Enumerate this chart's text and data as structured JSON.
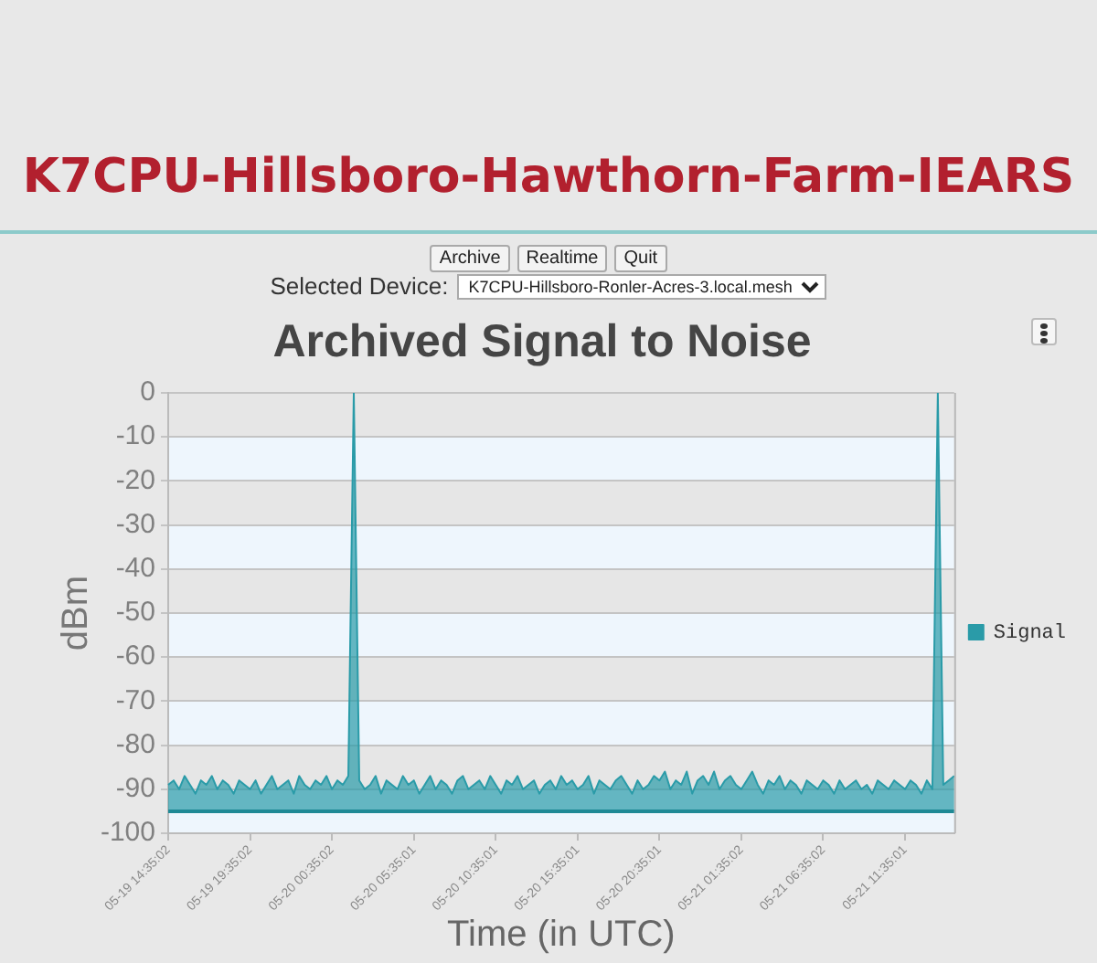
{
  "chart_data": {
    "type": "line",
    "title": "Archived Signal to Noise",
    "xlabel": "Time (in UTC)",
    "ylabel": "dBm",
    "categories": [
      "05-19 14:35:02",
      null,
      null,
      null,
      null,
      null,
      null,
      null,
      null,
      null,
      null,
      null,
      null,
      null,
      null,
      "05-19 19:35:02",
      null,
      null,
      null,
      null,
      null,
      null,
      null,
      null,
      null,
      null,
      null,
      null,
      null,
      null,
      "05-20 00:35:02",
      null,
      null,
      null,
      null,
      null,
      null,
      null,
      null,
      null,
      null,
      null,
      null,
      null,
      null,
      "05-20 05:35:01",
      null,
      null,
      null,
      null,
      null,
      null,
      null,
      null,
      null,
      null,
      null,
      null,
      null,
      null,
      "05-20 10:35:01",
      null,
      null,
      null,
      null,
      null,
      null,
      null,
      null,
      null,
      null,
      null,
      null,
      null,
      null,
      "05-20 15:35:01",
      null,
      null,
      null,
      null,
      null,
      null,
      null,
      null,
      null,
      null,
      null,
      null,
      null,
      null,
      "05-20 20:35:01",
      null,
      null,
      null,
      null,
      null,
      null,
      null,
      null,
      null,
      null,
      null,
      null,
      null,
      null,
      "05-21 01:35:02",
      null,
      null,
      null,
      null,
      null,
      null,
      null,
      null,
      null,
      null,
      null,
      null,
      null,
      null,
      "05-21 06:35:02",
      null,
      null,
      null,
      null,
      null,
      null,
      null,
      null,
      null,
      null,
      null,
      null,
      null,
      null,
      "05-21 11:35:01",
      null,
      null,
      null,
      null,
      null,
      null,
      null,
      null,
      null
    ],
    "series": [
      {
        "name": "Signal",
        "color": "#2a9ba8",
        "values": [
          -89,
          -88,
          -90,
          -87,
          -89,
          -91,
          -88,
          -89,
          -87,
          -90,
          -88,
          -89,
          -91,
          -88,
          -89,
          -90,
          -88,
          -91,
          -89,
          -87,
          -90,
          -89,
          -88,
          -91,
          -87,
          -89,
          -90,
          -88,
          -89,
          -87,
          -90,
          -88,
          -89,
          -87,
          0,
          -88,
          -90,
          -89,
          -87,
          -91,
          -88,
          -89,
          -90,
          -87,
          -89,
          -88,
          -91,
          -89,
          -87,
          -90,
          -88,
          -89,
          -91,
          -88,
          -87,
          -90,
          -89,
          -88,
          -90,
          -87,
          -89,
          -91,
          -88,
          -89,
          -87,
          -90,
          -89,
          -88,
          -91,
          -89,
          -88,
          -90,
          -87,
          -89,
          -88,
          -90,
          -89,
          -87,
          -91,
          -88,
          -89,
          -90,
          -88,
          -87,
          -89,
          -91,
          -88,
          -90,
          -89,
          -87,
          -88,
          -86,
          -90,
          -88,
          -89,
          -86,
          -91,
          -88,
          -87,
          -89,
          -86,
          -90,
          -88,
          -87,
          -89,
          -90,
          -88,
          -86,
          -89,
          -91,
          -88,
          -89,
          -87,
          -90,
          -88,
          -89,
          -91,
          -88,
          -89,
          -90,
          -88,
          -89,
          -91,
          -88,
          -90,
          -89,
          -88,
          -90,
          -89,
          -91,
          -88,
          -89,
          -90,
          -88,
          -89,
          -90,
          -88,
          -89,
          -91,
          -88,
          -90,
          0,
          -89,
          -88,
          -87
        ],
        "lower": [
          -95,
          -95,
          -95,
          -95,
          -95,
          -95,
          -95,
          -95,
          -95,
          -95,
          -95,
          -95,
          -95,
          -95,
          -95,
          -95,
          -95,
          -95,
          -95,
          -95,
          -95,
          -95,
          -95,
          -95,
          -95,
          -95,
          -95,
          -95,
          -95,
          -95,
          -95,
          -95,
          -95,
          -95,
          -95,
          -95,
          -95,
          -95,
          -95,
          -95,
          -95,
          -95,
          -95,
          -95,
          -95,
          -95,
          -95,
          -95,
          -95,
          -95,
          -95,
          -95,
          -95,
          -95,
          -95,
          -95,
          -95,
          -95,
          -95,
          -95,
          -95,
          -95,
          -95,
          -95,
          -95,
          -95,
          -95,
          -95,
          -95,
          -95,
          -95,
          -95,
          -95,
          -95,
          -95,
          -95,
          -95,
          -95,
          -95,
          -95,
          -95,
          -95,
          -95,
          -95,
          -95,
          -95,
          -95,
          -95,
          -95,
          -95,
          -95,
          -95,
          -95,
          -95,
          -95,
          -95,
          -95,
          -95,
          -95,
          -95,
          -95,
          -95,
          -95,
          -95,
          -95,
          -95,
          -95,
          -95,
          -95,
          -95,
          -95,
          -95,
          -95,
          -95,
          -95,
          -95,
          -95,
          -95,
          -95,
          -95,
          -95,
          -95,
          -95,
          -95,
          -95,
          -95,
          -95,
          -95,
          -95,
          -95,
          -95,
          -95,
          -95,
          -95,
          -95,
          -95,
          -95,
          -95,
          -95,
          -95,
          -95,
          -95,
          -95,
          -95,
          -95
        ],
        "upper": [
          -89,
          -88,
          -90,
          -87,
          -89,
          -91,
          -88,
          -89,
          -87,
          -90,
          -88,
          -89,
          -91,
          -88,
          -89,
          -90,
          -88,
          -91,
          -89,
          -87,
          -90,
          -89,
          -88,
          -91,
          -87,
          -89,
          -90,
          -88,
          -89,
          -87,
          -90,
          -88,
          -89,
          -87,
          0,
          -88,
          -90,
          -89,
          -87,
          -91,
          -88,
          -89,
          -90,
          -87,
          -89,
          -88,
          -91,
          -89,
          -87,
          -90,
          -88,
          -89,
          -91,
          -88,
          -87,
          -90,
          -89,
          -88,
          -90,
          -87,
          -89,
          -91,
          -88,
          -89,
          -87,
          -90,
          -89,
          -88,
          -91,
          -89,
          -88,
          -90,
          -87,
          -89,
          -88,
          -90,
          -89,
          -87,
          -91,
          -88,
          -89,
          -90,
          -88,
          -87,
          -89,
          -91,
          -88,
          -90,
          -89,
          -87,
          -88,
          -86,
          -90,
          -88,
          -89,
          -86,
          -91,
          -88,
          -87,
          -89,
          -86,
          -90,
          -88,
          -87,
          -89,
          -90,
          -88,
          -86,
          -89,
          -91,
          -88,
          -89,
          -87,
          -90,
          -88,
          -89,
          -91,
          -88,
          -89,
          -90,
          -88,
          -89,
          -91,
          -88,
          -90,
          -89,
          -88,
          -90,
          -89,
          -91,
          -88,
          -89,
          -90,
          -88,
          -89,
          -90,
          -88,
          -89,
          -91,
          -88,
          -90,
          0,
          -89,
          -88,
          -87
        ]
      }
    ],
    "ylim": [
      -100,
      0
    ],
    "yticks": [
      -100,
      -90,
      -80,
      -70,
      -60,
      -50,
      -40,
      -30,
      -20,
      -10,
      0
    ],
    "ref_lines": [
      {
        "axis": "y",
        "value": -95,
        "color": "#1f8995"
      }
    ],
    "grid": "y",
    "legend": "right",
    "marker": "none",
    "line_style": "solid",
    "annotations": [
      "K7CPU-Hillsboro-Hawthorn-Farm-IEARS",
      "Archive",
      "Realtime",
      "Quit",
      "Selected Device:",
      "K7CPU-Hillsboro-Ronler-Acres-3.local.mesh"
    ]
  }
}
